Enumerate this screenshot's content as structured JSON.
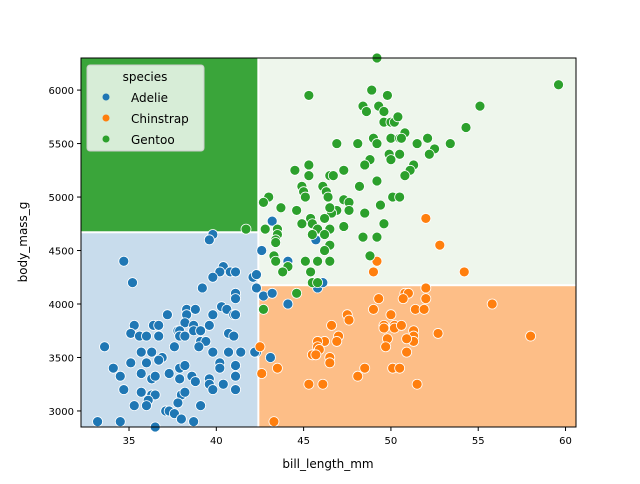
{
  "chart_data": {
    "type": "scatter",
    "xlabel": "bill_length_mm",
    "ylabel": "body_mass_g",
    "xlim": [
      32.25,
      60.6
    ],
    "ylim": [
      2850,
      6300
    ],
    "x_ticks": [
      35,
      40,
      45,
      50,
      55,
      60
    ],
    "y_ticks": [
      3000,
      3500,
      4000,
      4500,
      5000,
      5500,
      6000
    ],
    "grid": false,
    "legend": {
      "title": "species",
      "placement": "top-left"
    },
    "decision_regions": [
      {
        "class": "Gentoo",
        "x": [
          32.25,
          42.35
        ],
        "y": [
          4680,
          6300
        ],
        "color": "#3aa53a"
      },
      {
        "class": "Adelie",
        "x": [
          32.25,
          42.35
        ],
        "y": [
          2850,
          4680
        ],
        "color": "#c8dcec"
      },
      {
        "class": "Gentoo",
        "x": [
          42.35,
          60.6
        ],
        "y": [
          4185,
          6300
        ],
        "color": "#eef6ec"
      },
      {
        "class": "Chinstrap",
        "x": [
          42.35,
          60.6
        ],
        "y": [
          2850,
          4185
        ],
        "color": "#fdbe87"
      }
    ],
    "series": [
      {
        "name": "Adelie",
        "color": "#1f77b4",
        "points": [
          [
            39.8,
            4650
          ],
          [
            39.6,
            4600
          ],
          [
            34.7,
            4400
          ],
          [
            35.2,
            4200
          ],
          [
            42.6,
            4500
          ],
          [
            40.4,
            4350
          ],
          [
            40.2,
            4300
          ],
          [
            39.8,
            4250
          ],
          [
            40.8,
            4300
          ],
          [
            41.1,
            4300
          ],
          [
            42.1,
            4250
          ],
          [
            42.3,
            4275
          ],
          [
            39.2,
            4150
          ],
          [
            42.3,
            4150
          ],
          [
            41.1,
            4100
          ],
          [
            41.1,
            4050
          ],
          [
            37.2,
            3900
          ],
          [
            38.3,
            3950
          ],
          [
            38.3,
            3900
          ],
          [
            38.8,
            3950
          ],
          [
            40.3,
            3975
          ],
          [
            40.6,
            3950
          ],
          [
            39.8,
            3900
          ],
          [
            41.0,
            3900
          ],
          [
            41.1,
            3900
          ],
          [
            38.2,
            3825
          ],
          [
            38.7,
            3800
          ],
          [
            35.3,
            3800
          ],
          [
            36.4,
            3800
          ],
          [
            36.7,
            3800
          ],
          [
            37.8,
            3750
          ],
          [
            37.9,
            3750
          ],
          [
            38.7,
            3750
          ],
          [
            39.1,
            3750
          ],
          [
            39.6,
            3800
          ],
          [
            35.1,
            3725
          ],
          [
            35.6,
            3700
          ],
          [
            36.0,
            3700
          ],
          [
            36.7,
            3700
          ],
          [
            37.9,
            3700
          ],
          [
            38.2,
            3700
          ],
          [
            40.7,
            3725
          ],
          [
            41.0,
            3700
          ],
          [
            39.1,
            3650
          ],
          [
            39.4,
            3650
          ],
          [
            39.0,
            3600
          ],
          [
            37.6,
            3600
          ],
          [
            33.6,
            3600
          ],
          [
            35.7,
            3550
          ],
          [
            36.3,
            3550
          ],
          [
            39.8,
            3550
          ],
          [
            40.7,
            3550
          ],
          [
            41.4,
            3550
          ],
          [
            42.3,
            3550
          ],
          [
            36.9,
            3500
          ],
          [
            36.7,
            3475
          ],
          [
            34.1,
            3400
          ],
          [
            35.1,
            3450
          ],
          [
            36.0,
            3450
          ],
          [
            40.2,
            3450
          ],
          [
            41.1,
            3425
          ],
          [
            37.9,
            3400
          ],
          [
            38.2,
            3425
          ],
          [
            40.2,
            3400
          ],
          [
            34.5,
            3325
          ],
          [
            35.7,
            3350
          ],
          [
            36.3,
            3300
          ],
          [
            36.5,
            3325
          ],
          [
            37.3,
            3350
          ],
          [
            37.9,
            3300
          ],
          [
            38.6,
            3325
          ],
          [
            38.8,
            3275
          ],
          [
            39.6,
            3300
          ],
          [
            39.6,
            3250
          ],
          [
            40.4,
            3250
          ],
          [
            41.1,
            3325
          ],
          [
            41.1,
            3200
          ],
          [
            34.7,
            3200
          ],
          [
            39.8,
            3200
          ],
          [
            35.7,
            3175
          ],
          [
            36.3,
            3150
          ],
          [
            36.5,
            3150
          ],
          [
            38.0,
            3150
          ],
          [
            38.2,
            3175
          ],
          [
            36.1,
            3100
          ],
          [
            36.0,
            3050
          ],
          [
            35.3,
            3050
          ],
          [
            37.8,
            3075
          ],
          [
            39.1,
            3050
          ],
          [
            37.1,
            3000
          ],
          [
            37.3,
            3000
          ],
          [
            37.6,
            2975
          ],
          [
            38.0,
            2925
          ],
          [
            38.7,
            2900
          ],
          [
            33.2,
            2900
          ],
          [
            34.5,
            2900
          ],
          [
            36.5,
            2850
          ],
          [
            43.1,
            3500
          ],
          [
            42.7,
            4075
          ],
          [
            43.2,
            4100
          ],
          [
            44.1,
            4000
          ],
          [
            42.2,
            3550
          ],
          [
            45.8,
            4150
          ],
          [
            46.1,
            4200
          ],
          [
            43.2,
            4775
          ],
          [
            45.7,
            4600
          ],
          [
            44.1,
            4400
          ]
        ]
      },
      {
        "name": "Chinstrap",
        "color": "#ff7f0e",
        "points": [
          [
            49.0,
            4300
          ],
          [
            54.2,
            4300
          ],
          [
            52.0,
            4150
          ],
          [
            50.8,
            4100
          ],
          [
            51.0,
            4100
          ],
          [
            49.3,
            4050
          ],
          [
            50.7,
            4050
          ],
          [
            52.0,
            4050
          ],
          [
            55.8,
            4000
          ],
          [
            49.0,
            3950
          ],
          [
            51.4,
            3950
          ],
          [
            51.9,
            3950
          ],
          [
            47.5,
            3900
          ],
          [
            47.6,
            3850
          ],
          [
            50.0,
            3900
          ],
          [
            49.6,
            3800
          ],
          [
            49.6,
            3775
          ],
          [
            50.2,
            3800
          ],
          [
            50.2,
            3775
          ],
          [
            50.6,
            3800
          ],
          [
            46.6,
            3800
          ],
          [
            51.3,
            3750
          ],
          [
            51.3,
            3700
          ],
          [
            51.3,
            3650
          ],
          [
            50.9,
            3675
          ],
          [
            52.7,
            3725
          ],
          [
            58.0,
            3700
          ],
          [
            47.0,
            3700
          ],
          [
            46.9,
            3650
          ],
          [
            46.2,
            3650
          ],
          [
            45.8,
            3650
          ],
          [
            45.8,
            3600
          ],
          [
            45.9,
            3575
          ],
          [
            45.5,
            3525
          ],
          [
            45.7,
            3525
          ],
          [
            49.8,
            3675
          ],
          [
            49.7,
            3600
          ],
          [
            50.9,
            3550
          ],
          [
            46.5,
            3500
          ],
          [
            46.5,
            3450
          ],
          [
            48.5,
            3400
          ],
          [
            48.1,
            3325
          ],
          [
            50.1,
            3400
          ],
          [
            50.5,
            3400
          ],
          [
            43.5,
            3400
          ],
          [
            42.6,
            3350
          ],
          [
            42.5,
            3600
          ],
          [
            45.3,
            3250
          ],
          [
            46.1,
            3250
          ],
          [
            51.5,
            3250
          ],
          [
            43.3,
            2900
          ],
          [
            52.0,
            4800
          ],
          [
            52.8,
            4550
          ],
          [
            49.2,
            4400
          ]
        ]
      },
      {
        "name": "Gentoo",
        "color": "#2ca02c",
        "points": [
          [
            49.2,
            6300
          ],
          [
            59.6,
            6050
          ],
          [
            45.3,
            5950
          ],
          [
            48.9,
            6000
          ],
          [
            49.8,
            5950
          ],
          [
            55.1,
            5850
          ],
          [
            48.4,
            5850
          ],
          [
            48.6,
            5800
          ],
          [
            49.3,
            5850
          ],
          [
            49.6,
            5800
          ],
          [
            49.6,
            5700
          ],
          [
            50.0,
            5700
          ],
          [
            50.2,
            5700
          ],
          [
            50.4,
            5750
          ],
          [
            54.3,
            5650
          ],
          [
            50.8,
            5600
          ],
          [
            46.9,
            5500
          ],
          [
            48.1,
            5500
          ],
          [
            49.0,
            5550
          ],
          [
            49.2,
            5500
          ],
          [
            50.0,
            5550
          ],
          [
            50.5,
            5550
          ],
          [
            50.6,
            5550
          ],
          [
            51.5,
            5500
          ],
          [
            52.1,
            5550
          ],
          [
            53.4,
            5500
          ],
          [
            52.5,
            5450
          ],
          [
            52.2,
            5400
          ],
          [
            49.9,
            5400
          ],
          [
            50.0,
            5350
          ],
          [
            50.5,
            5400
          ],
          [
            48.8,
            5350
          ],
          [
            48.5,
            5300
          ],
          [
            51.3,
            5300
          ],
          [
            51.1,
            5250
          ],
          [
            50.8,
            5200
          ],
          [
            45.3,
            5300
          ],
          [
            44.5,
            5250
          ],
          [
            45.3,
            5200
          ],
          [
            46.5,
            5200
          ],
          [
            46.7,
            5200
          ],
          [
            47.3,
            5250
          ],
          [
            49.2,
            5150
          ],
          [
            48.2,
            5100
          ],
          [
            44.9,
            5100
          ],
          [
            45.0,
            5050
          ],
          [
            45.1,
            5000
          ],
          [
            46.1,
            5100
          ],
          [
            46.3,
            5050
          ],
          [
            46.4,
            5000
          ],
          [
            47.3,
            4975
          ],
          [
            47.6,
            4950
          ],
          [
            47.6,
            4875
          ],
          [
            46.9,
            4875
          ],
          [
            46.6,
            4850
          ],
          [
            46.5,
            4900
          ],
          [
            50.1,
            5000
          ],
          [
            50.5,
            5000
          ],
          [
            49.4,
            4925
          ],
          [
            48.5,
            4850
          ],
          [
            49.6,
            4750
          ],
          [
            43.0,
            5000
          ],
          [
            42.7,
            4950
          ],
          [
            43.7,
            4900
          ],
          [
            44.6,
            4875
          ],
          [
            45.4,
            4800
          ],
          [
            46.2,
            4800
          ],
          [
            45.5,
            4750
          ],
          [
            44.9,
            4750
          ],
          [
            45.8,
            4700
          ],
          [
            46.5,
            4700
          ],
          [
            47.3,
            4725
          ],
          [
            45.5,
            4650
          ],
          [
            46.2,
            4650
          ],
          [
            42.8,
            4700
          ],
          [
            43.5,
            4700
          ],
          [
            43.5,
            4650
          ],
          [
            43.4,
            4600
          ],
          [
            43.4,
            4575
          ],
          [
            46.5,
            4550
          ],
          [
            46.2,
            4500
          ],
          [
            48.4,
            4625
          ],
          [
            49.2,
            4625
          ],
          [
            48.8,
            4450
          ],
          [
            43.3,
            4450
          ],
          [
            43.4,
            4400
          ],
          [
            45.1,
            4400
          ],
          [
            45.8,
            4400
          ],
          [
            46.5,
            4400
          ],
          [
            44.1,
            4350
          ],
          [
            43.8,
            4300
          ],
          [
            45.4,
            4300
          ],
          [
            45.5,
            4200
          ],
          [
            45.8,
            4200
          ],
          [
            41.7,
            4700
          ],
          [
            44.6,
            4100
          ],
          [
            42.7,
            3950
          ]
        ]
      }
    ]
  }
}
